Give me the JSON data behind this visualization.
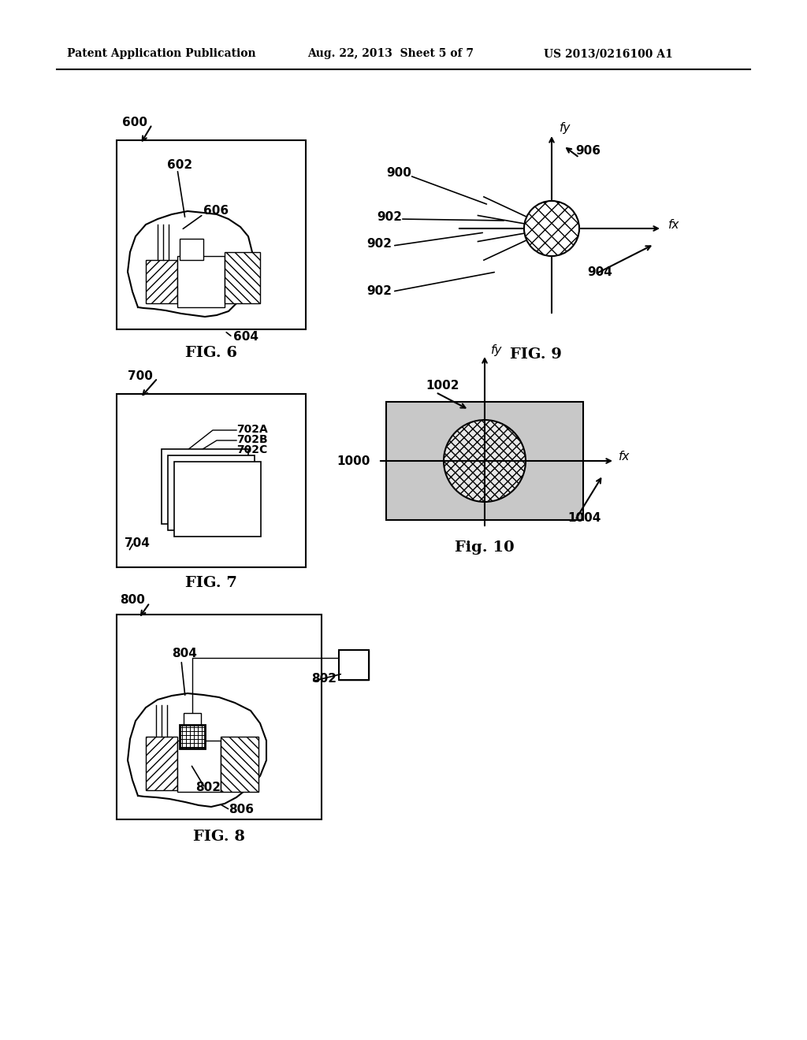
{
  "bg_color": "#ffffff",
  "text_color": "#000000",
  "header_left": "Patent Application Publication",
  "header_mid": "Aug. 22, 2013  Sheet 5 of 7",
  "header_right": "US 2013/0216100 A1",
  "fig6_label": "FIG. 6",
  "fig7_label": "FIG. 7",
  "fig8_label": "FIG. 8",
  "fig9_label": "FIG. 9",
  "fig10_label": "Fig. 10"
}
